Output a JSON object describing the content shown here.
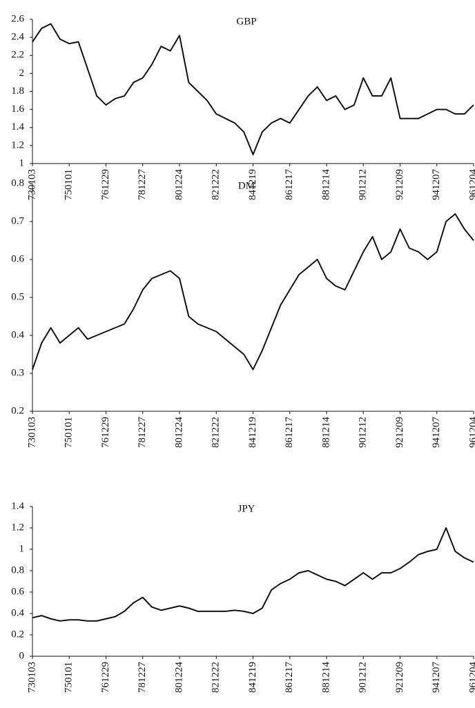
{
  "chart_data": [
    {
      "type": "line",
      "title": "GBP",
      "categories": [
        "730103",
        null,
        null,
        null,
        "750101",
        null,
        null,
        null,
        "761229",
        null,
        null,
        null,
        "781227",
        null,
        null,
        null,
        "801224",
        null,
        null,
        null,
        "821222",
        null,
        null,
        null,
        "841219",
        null,
        null,
        null,
        "861217",
        null,
        null,
        null,
        "881214",
        null,
        null,
        null,
        "901212",
        null,
        null,
        null,
        "921209",
        null,
        null,
        null,
        "941207",
        null,
        null,
        null,
        "961204"
      ],
      "values": [
        2.35,
        2.5,
        2.55,
        2.38,
        2.33,
        2.35,
        2.05,
        1.75,
        1.65,
        1.72,
        1.75,
        1.9,
        1.95,
        2.1,
        2.3,
        2.25,
        2.42,
        1.9,
        1.8,
        1.7,
        1.55,
        1.5,
        1.45,
        1.35,
        1.1,
        1.35,
        1.45,
        1.5,
        1.45,
        1.6,
        1.75,
        1.85,
        1.7,
        1.75,
        1.6,
        1.65,
        1.95,
        1.75,
        1.75,
        1.95,
        1.5,
        1.5,
        1.5,
        1.55,
        1.6,
        1.6,
        1.55,
        1.55,
        1.65
      ],
      "color": "#111111",
      "ylim": [
        1,
        2.6
      ],
      "yticks": [
        1,
        1.2,
        1.4,
        1.6,
        1.8,
        2,
        2.2,
        2.4,
        2.6
      ]
    },
    {
      "type": "line",
      "title": "DM",
      "categories": [
        "730103",
        null,
        null,
        null,
        "750101",
        null,
        null,
        null,
        "761229",
        null,
        null,
        null,
        "781227",
        null,
        null,
        null,
        "801224",
        null,
        null,
        null,
        "821222",
        null,
        null,
        null,
        "841219",
        null,
        null,
        null,
        "861217",
        null,
        null,
        null,
        "881214",
        null,
        null,
        null,
        "901212",
        null,
        null,
        null,
        "921209",
        null,
        null,
        null,
        "941207",
        null,
        null,
        null,
        "961204"
      ],
      "values": [
        0.31,
        0.38,
        0.42,
        0.38,
        0.4,
        0.42,
        0.39,
        0.4,
        0.41,
        0.42,
        0.43,
        0.47,
        0.52,
        0.55,
        0.56,
        0.57,
        0.55,
        0.45,
        0.43,
        0.42,
        0.41,
        0.39,
        0.37,
        0.35,
        0.31,
        0.36,
        0.42,
        0.48,
        0.52,
        0.56,
        0.58,
        0.6,
        0.55,
        0.53,
        0.52,
        0.57,
        0.62,
        0.66,
        0.6,
        0.62,
        0.68,
        0.63,
        0.62,
        0.6,
        0.62,
        0.7,
        0.72,
        0.68,
        0.65
      ],
      "color": "#111111",
      "ylim": [
        0.2,
        0.8
      ],
      "yticks": [
        0.2,
        0.3,
        0.4,
        0.5,
        0.6,
        0.7,
        0.8
      ]
    },
    {
      "type": "line",
      "title": "JPY",
      "categories": [
        "730103",
        null,
        null,
        null,
        "750101",
        null,
        null,
        null,
        "761229",
        null,
        null,
        null,
        "781227",
        null,
        null,
        null,
        "801224",
        null,
        null,
        null,
        "821222",
        null,
        null,
        null,
        "841219",
        null,
        null,
        null,
        "861217",
        null,
        null,
        null,
        "881214",
        null,
        null,
        null,
        "901212",
        null,
        null,
        null,
        "921209",
        null,
        null,
        null,
        "941207",
        null,
        null,
        null,
        "961204"
      ],
      "values": [
        0.36,
        0.38,
        0.35,
        0.33,
        0.34,
        0.34,
        0.33,
        0.33,
        0.35,
        0.37,
        0.42,
        0.5,
        0.55,
        0.46,
        0.43,
        0.45,
        0.47,
        0.45,
        0.42,
        0.42,
        0.42,
        0.42,
        0.43,
        0.42,
        0.4,
        0.45,
        0.62,
        0.68,
        0.72,
        0.78,
        0.8,
        0.76,
        0.72,
        0.7,
        0.66,
        0.72,
        0.78,
        0.72,
        0.78,
        0.78,
        0.82,
        0.88,
        0.95,
        0.98,
        1.0,
        1.2,
        0.98,
        0.92,
        0.88
      ],
      "color": "#111111",
      "ylim": [
        0,
        1.4
      ],
      "yticks": [
        0,
        0.2,
        0.4,
        0.6,
        0.8,
        1,
        1.2,
        1.4
      ]
    }
  ]
}
